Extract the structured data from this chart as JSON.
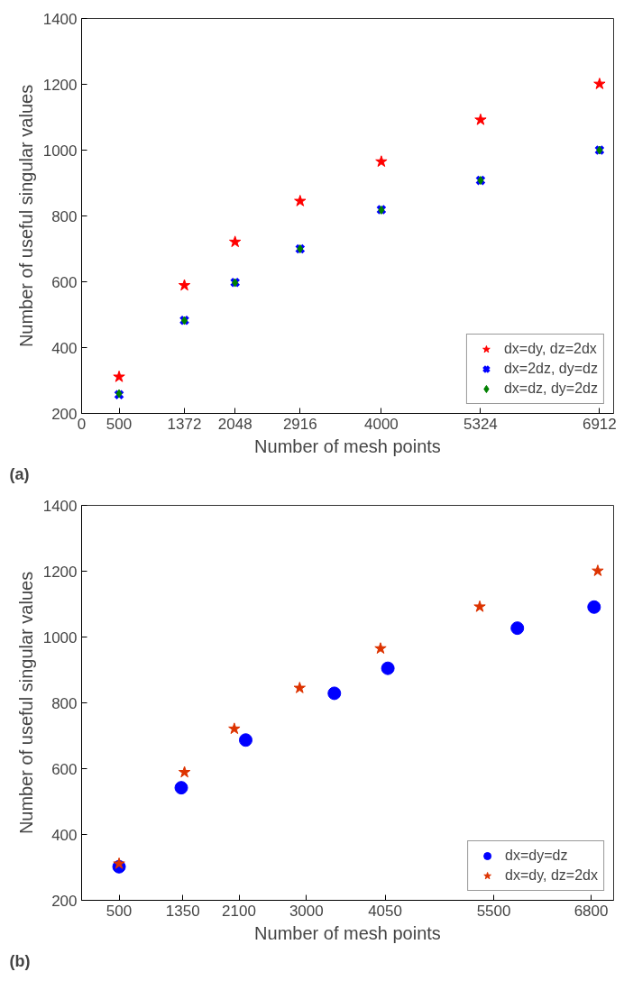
{
  "chart_data": [
    {
      "type": "scatter",
      "xlabel": "Number of mesh points",
      "ylabel": "Number of useful singular values",
      "annotations": [
        "(a)"
      ],
      "xlim": [
        0,
        7100
      ],
      "ylim": [
        200,
        1400
      ],
      "xticks": [
        0,
        500,
        1372,
        2048,
        2916,
        4000,
        5324,
        6912
      ],
      "yticks": [
        200,
        400,
        600,
        800,
        1000,
        1200,
        1400
      ],
      "grid": false,
      "legend": "bottom right",
      "x": [
        500,
        1372,
        2048,
        2916,
        4000,
        5324,
        6912
      ],
      "series": [
        {
          "name": "dx=dy, dz=2dx",
          "color": "#ff0000",
          "marker": "star",
          "values": [
            311,
            589,
            721,
            845,
            965,
            1092,
            1201
          ]
        },
        {
          "name": "dx=2dz, dy=dz",
          "color": "#0000ff",
          "marker": "cross",
          "values": [
            257,
            483,
            598,
            700,
            819,
            908,
            1000
          ]
        },
        {
          "name": "dx=dz, dy=2dz",
          "color": "#008000",
          "marker": "diamond",
          "values": [
            260,
            482,
            597,
            700,
            818,
            908,
            1000
          ]
        }
      ]
    },
    {
      "type": "scatter",
      "xlabel": "Number of mesh points",
      "ylabel": "Number of useful singular values",
      "annotations": [
        "(b)"
      ],
      "xlim": [
        0,
        7100
      ],
      "ylim": [
        200,
        1400
      ],
      "xticks": [
        500,
        1350,
        2100,
        3000,
        4050,
        5500,
        6800
      ],
      "yticks": [
        200,
        400,
        600,
        800,
        1000,
        1200,
        1400
      ],
      "grid": false,
      "legend": "bottom right",
      "series": [
        {
          "name": "dx=dy=dz",
          "color": "#0000ff",
          "marker": "circle",
          "x": [
            500,
            1330,
            2190,
            3373,
            4087,
            5815,
            6839
          ],
          "values": [
            302,
            542,
            687,
            829,
            905,
            1027,
            1091
          ]
        },
        {
          "name": "dx=dy, dz=2dx",
          "color": "#dd3300",
          "marker": "star",
          "x": [
            500,
            1373,
            2038,
            2910,
            3989,
            5313,
            6888
          ],
          "values": [
            311,
            589,
            721,
            845,
            965,
            1092,
            1201
          ]
        }
      ]
    }
  ]
}
